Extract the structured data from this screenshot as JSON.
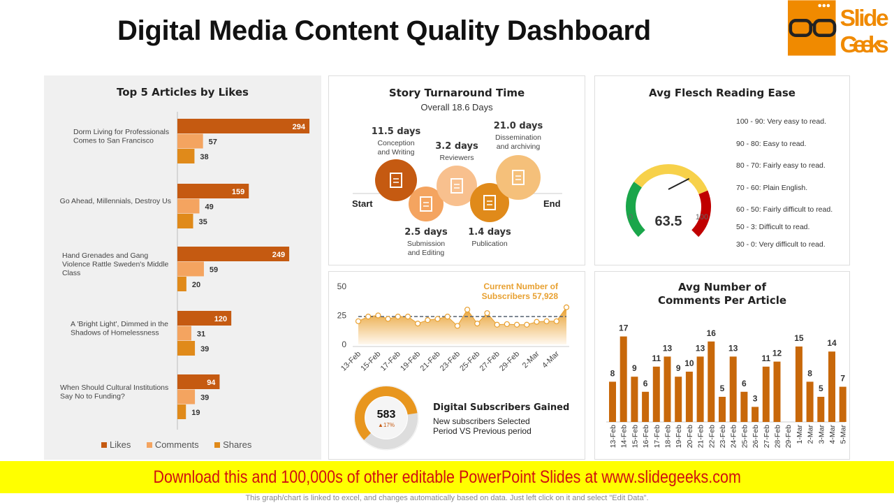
{
  "header": {
    "title": "Digital Media Content Quality Dashboard",
    "logo_text": [
      "Slide",
      "Geeks"
    ]
  },
  "colors": {
    "likes": "#c55a11",
    "comments": "#f4a460",
    "shares": "#e08a1a",
    "gauge_green": "#1aa64a",
    "gauge_yellow": "#f7d14a",
    "gauge_red": "#c00000",
    "banner_bg": "#ffff00",
    "banner_text": "#d01010"
  },
  "top_articles": {
    "title": "Top 5 Articles by Likes",
    "legend": [
      "Likes",
      "Comments",
      "Shares"
    ],
    "chart_data": {
      "type": "bar",
      "orientation": "horizontal",
      "categories": [
        "Dorm Living for Professionals Comes to San Francisco",
        "Go Ahead, Millennials, Destroy Us",
        "Hand Grenades and Gang Violence Rattle Sweden's Middle Class",
        "A 'Bright Light', Dimmed in the Shadows of Homelessness",
        "When Should Cultural Institutions Say No to Funding?"
      ],
      "series": [
        {
          "name": "Likes",
          "values": [
            294,
            159,
            249,
            120,
            94
          ]
        },
        {
          "name": "Comments",
          "values": [
            57,
            49,
            59,
            31,
            39
          ]
        },
        {
          "name": "Shares",
          "values": [
            38,
            35,
            20,
            39,
            19
          ]
        }
      ]
    }
  },
  "turnaround": {
    "title": "Story Turnaround Time",
    "overall": "Overall  18.6 Days",
    "start": "Start",
    "end": "End",
    "stages": [
      {
        "days": "11.5 days",
        "label": [
          "Conception",
          "and Writing"
        ],
        "icon": "document-pen-icon"
      },
      {
        "days": "2.5 days",
        "label": [
          "Submission",
          "and Editing"
        ],
        "icon": "edit-document-icon"
      },
      {
        "days": "3.2 days",
        "label": [
          "Reviewers"
        ],
        "icon": "review-document-icon"
      },
      {
        "days": "1.4 days",
        "label": [
          "Publication"
        ],
        "icon": "globe-icon"
      },
      {
        "days": "21.0 days",
        "label": [
          "Dissemination",
          "and archiving"
        ],
        "icon": "megaphone-icon"
      }
    ]
  },
  "flesch": {
    "title": "Avg Flesch Reading Ease",
    "value": "63.5",
    "value_num": 63.5,
    "min": "0",
    "max": "100",
    "legend": [
      "100 - 90: Very easy to read.",
      "90 - 80: Easy to read.",
      "80 - 70: Fairly easy to read.",
      "70 - 60: Plain  English.",
      "60 - 50: Fairly difficult to read.",
      "50 - 3: Difficult to read.",
      "30 - 0: Very difficult to read."
    ]
  },
  "subscribers": {
    "annotation": [
      "Current Number of",
      "Subscribers 57,928"
    ],
    "chart_data": {
      "type": "area",
      "yticks": [
        "0",
        "25",
        "50"
      ],
      "ylim": [
        0,
        50
      ],
      "average": 24,
      "x": [
        "13-Feb",
        "14-Feb",
        "15-Feb",
        "16-Feb",
        "17-Feb",
        "18-Feb",
        "19-Feb",
        "20-Feb",
        "21-Feb",
        "22-Feb",
        "23-Feb",
        "24-Feb",
        "25-Feb",
        "26-Feb",
        "27-Feb",
        "28-Feb",
        "29-Feb",
        "1-Mar",
        "2-Mar",
        "3-Mar",
        "4-Mar",
        "5-Mar"
      ],
      "xtick_labels": [
        "13-Feb",
        "15-Feb",
        "17-Feb",
        "19-Feb",
        "21-Feb",
        "23-Feb",
        "25-Feb",
        "27-Feb",
        "29-Feb",
        "2-Mar",
        "4-Mar"
      ],
      "values": [
        20,
        24,
        25,
        22,
        24,
        24,
        18,
        21,
        22,
        24,
        16,
        30,
        18,
        27,
        17,
        17.5,
        17,
        17,
        19.5,
        20,
        20,
        32
      ]
    },
    "gained": {
      "value": "583",
      "change": "▲17%",
      "fraction": 0.6,
      "title": "Digital Subscribers Gained",
      "desc": [
        "New subscribers Selected",
        "Period VS Previous period"
      ]
    }
  },
  "comments": {
    "title": [
      "Avg Number of",
      "Comments Per Article"
    ],
    "chart_data": {
      "type": "bar",
      "categories": [
        "13-Feb",
        "14-Feb",
        "15-Feb",
        "16-Feb",
        "17-Feb",
        "18-Feb",
        "19-Feb",
        "20-Feb",
        "21-Feb",
        "22-Feb",
        "23-Feb",
        "24-Feb",
        "25-Feb",
        "26-Feb",
        "27-Feb",
        "28-Feb",
        "29-Feb",
        "1-Mar",
        "2-Mar",
        "3-Mar",
        "4-Mar",
        "5-Mar"
      ],
      "values": [
        8,
        17,
        9,
        6,
        11,
        13,
        9,
        10,
        13,
        16,
        5,
        13,
        6,
        3,
        11,
        12,
        null,
        15,
        8,
        5,
        14,
        7
      ]
    }
  },
  "banner": {
    "text": "Download this and 100,000s of other editable PowerPoint Slides at www.slidegeeks.com"
  },
  "footnote": "This graph/chart is linked to excel, and changes automatically based on data. Just left click on it and select \"Edit Data\"."
}
